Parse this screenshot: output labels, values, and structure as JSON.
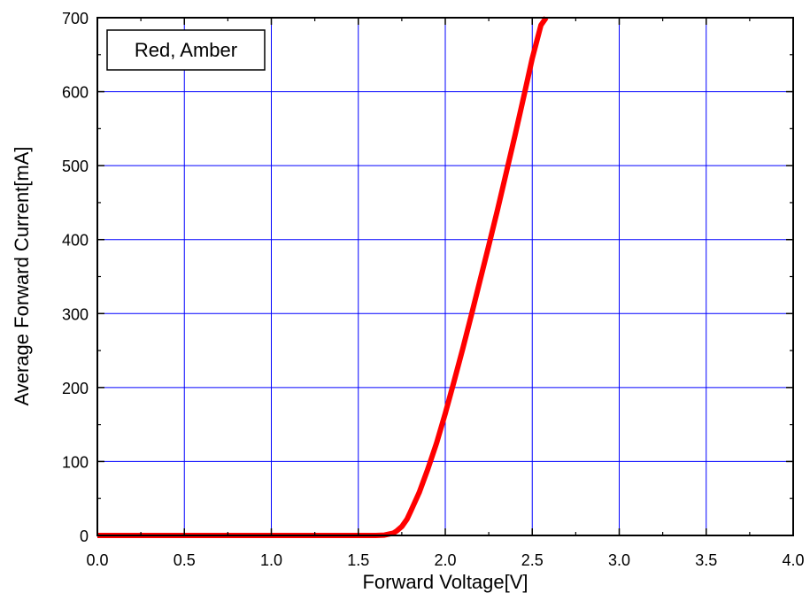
{
  "chart_data": {
    "type": "line",
    "title": "",
    "xlabel": "Forward Voltage[V]",
    "ylabel": "Average Forward Current[mA]",
    "xlim": [
      0.0,
      4.0
    ],
    "ylim": [
      0,
      700
    ],
    "x_ticks": [
      {
        "value": 0.0,
        "label": "0.0"
      },
      {
        "value": 0.5,
        "label": "0.5"
      },
      {
        "value": 1.0,
        "label": "1.0"
      },
      {
        "value": 1.5,
        "label": "1.5"
      },
      {
        "value": 2.0,
        "label": "2.0"
      },
      {
        "value": 2.5,
        "label": "2.5"
      },
      {
        "value": 3.0,
        "label": "3.0"
      },
      {
        "value": 3.5,
        "label": "3.5"
      },
      {
        "value": 4.0,
        "label": "4.0"
      }
    ],
    "y_ticks": [
      {
        "value": 0,
        "label": "0"
      },
      {
        "value": 100,
        "label": "100"
      },
      {
        "value": 200,
        "label": "200"
      },
      {
        "value": 300,
        "label": "300"
      },
      {
        "value": 400,
        "label": "400"
      },
      {
        "value": 500,
        "label": "500"
      },
      {
        "value": 600,
        "label": "600"
      },
      {
        "value": 700,
        "label": "700"
      }
    ],
    "grid": true,
    "grid_color": "#0000ff",
    "legend": {
      "position": "top-left",
      "entries": [
        "Red, Amber"
      ]
    },
    "series": [
      {
        "name": "Red, Amber",
        "color": "#ff0000",
        "x": [
          0.0,
          0.5,
          1.0,
          1.5,
          1.6,
          1.65,
          1.7,
          1.72,
          1.75,
          1.78,
          1.8,
          1.85,
          1.9,
          1.95,
          2.0,
          2.05,
          2.1,
          2.15,
          2.2,
          2.25,
          2.3,
          2.35,
          2.4,
          2.45,
          2.5,
          2.55,
          2.58
        ],
        "y": [
          0,
          0,
          0,
          0,
          0,
          0.5,
          3,
          6,
          12,
          22,
          32,
          58,
          90,
          125,
          165,
          208,
          252,
          298,
          345,
          392,
          440,
          490,
          540,
          592,
          645,
          690,
          700
        ]
      }
    ]
  }
}
